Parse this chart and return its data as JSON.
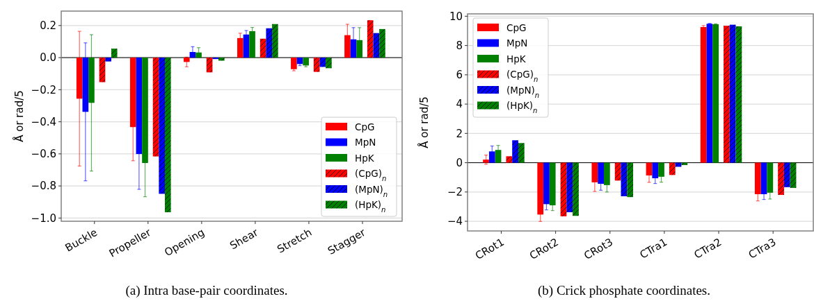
{
  "chart_data": [
    {
      "type": "bar",
      "title": "(a) Intra base-pair coordinates.",
      "ylabel": "Å or rad/5",
      "categories": [
        "Buckle",
        "Propeller",
        "Opening",
        "Shear",
        "Stretch",
        "Stagger"
      ],
      "series": [
        {
          "name": "CpG",
          "color": "#ff0000",
          "values": [
            -0.256,
            -0.433,
            -0.027,
            0.122,
            -0.072,
            0.14
          ],
          "errors": [
            0.42,
            0.21,
            0.03,
            0.03,
            0.01,
            0.068
          ]
        },
        {
          "name": "MpN",
          "color": "#0000ff",
          "values": [
            -0.338,
            -0.601,
            0.035,
            0.144,
            -0.04,
            0.114
          ],
          "errors": [
            0.43,
            0.22,
            0.033,
            0.025,
            0.01,
            0.073
          ]
        },
        {
          "name": "HpK",
          "color": "#008000",
          "values": [
            -0.282,
            -0.657,
            0.032,
            0.165,
            -0.049,
            0.109
          ],
          "errors": [
            0.425,
            0.21,
            0.03,
            0.023,
            0.008,
            0.078
          ]
        },
        {
          "name": "(CpG)$_{n}$",
          "color": "#ff0000",
          "values": [
            -0.153,
            -0.616,
            -0.092,
            0.118,
            -0.089,
            0.233
          ]
        },
        {
          "name": "(MpN)$_{n}$",
          "color": "#0000ff",
          "values": [
            -0.024,
            -0.849,
            -0.009,
            0.183,
            -0.058,
            0.153
          ]
        },
        {
          "name": "(HpK)$_{n}$",
          "color": "#008000",
          "values": [
            0.056,
            -0.964,
            -0.019,
            0.209,
            -0.066,
            0.178
          ]
        }
      ],
      "ylim": [
        -1.02,
        0.29
      ],
      "yticks": [
        {
          "value": -1.0,
          "label": "−1.0"
        },
        {
          "value": -0.8,
          "label": "−0.8"
        },
        {
          "value": -0.6,
          "label": "−0.6"
        },
        {
          "value": -0.4,
          "label": "−0.4"
        },
        {
          "value": -0.2,
          "label": "−0.2"
        },
        {
          "value": 0,
          "label": "0.0"
        },
        0.2
      ],
      "ref_lines": [
        {
          "axis": "y",
          "value": 0,
          "color": "#000000"
        }
      ],
      "grid": "y",
      "legend": "bottom right"
    },
    {
      "type": "bar",
      "title": "(b) Crick phosphate coordinates.",
      "ylabel": "Å or rad/5",
      "categories": [
        "CRot1",
        "CRot2",
        "CRot3",
        "CTra1",
        "CTra2",
        "CTra3"
      ],
      "series": [
        {
          "name": "CpG",
          "color": "#ff0000",
          "values": [
            0.21,
            -3.54,
            -1.34,
            -0.87,
            9.26,
            -2.15
          ],
          "errors": [
            0.31,
            0.47,
            0.62,
            0.47,
            0.1,
            0.46
          ]
        },
        {
          "name": "MpN",
          "color": "#0000ff",
          "values": [
            0.77,
            -2.83,
            -1.44,
            -1.06,
            9.48,
            -2.15
          ],
          "errors": [
            0.37,
            0.39,
            0.44,
            0.36,
            0.03,
            0.36
          ]
        },
        {
          "name": "HpK",
          "color": "#008000",
          "values": [
            0.87,
            -2.91,
            -1.53,
            -0.96,
            9.45,
            -2.05
          ],
          "errors": [
            0.31,
            0.36,
            0.47,
            0.37,
            0.03,
            0.43
          ]
        },
        {
          "name": "(CpG)$_{n}$",
          "color": "#ff0000",
          "values": [
            0.44,
            -3.66,
            -1.22,
            -0.84,
            9.35,
            -2.2
          ]
        },
        {
          "name": "(MpN)$_{n}$",
          "color": "#0000ff",
          "values": [
            1.53,
            -3.38,
            -2.29,
            -0.28,
            9.42,
            -1.67
          ]
        },
        {
          "name": "(HpK)$_{n}$",
          "color": "#008000",
          "values": [
            1.34,
            -3.63,
            -2.35,
            -0.16,
            9.31,
            -1.72
          ]
        }
      ],
      "ylim": [
        -4.66,
        10.16
      ],
      "yticks": [
        {
          "value": -4,
          "label": "−4"
        },
        {
          "value": -2,
          "label": "−2"
        },
        0,
        2,
        4,
        6,
        8,
        10
      ],
      "ref_lines": [
        {
          "axis": "y",
          "value": 0,
          "color": "#000000"
        }
      ],
      "grid": "y",
      "legend": "top left"
    }
  ]
}
